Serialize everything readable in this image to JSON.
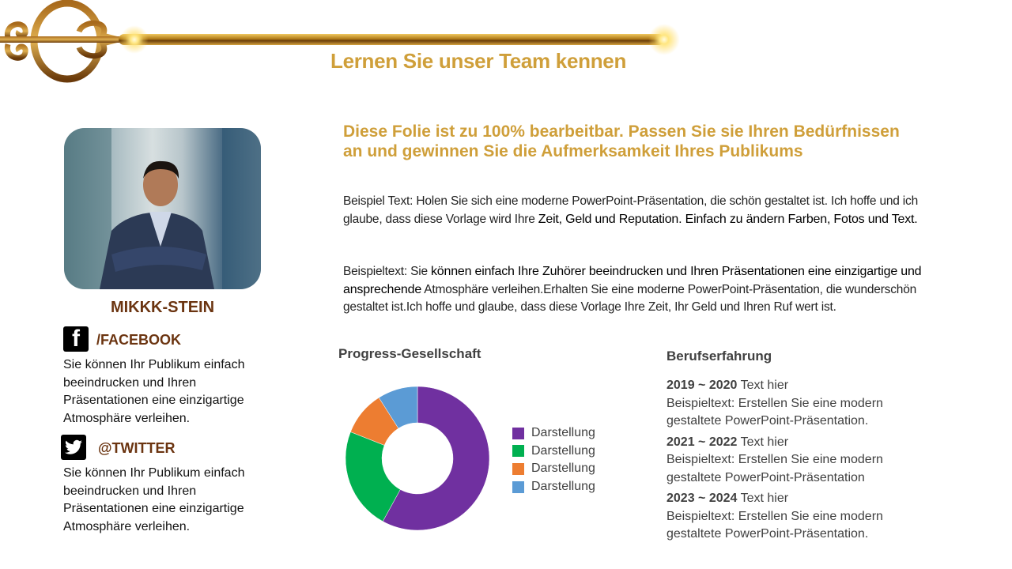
{
  "header": {
    "title": "Lernen Sie unser Team kennen"
  },
  "profile": {
    "name": "MIKKK-STEIN",
    "facebook": {
      "icon": "facebook-icon",
      "handle": "/FACEBOOK",
      "text": "Sie können Ihr Publikum einfach beeindrucken und Ihren Präsentationen eine einzigartige Atmosphäre verleihen."
    },
    "twitter": {
      "icon": "twitter-icon",
      "handle": "@TWITTER",
      "text": "Sie können Ihr Publikum einfach beeindrucken und Ihren Präsentationen eine einzigartige Atmosphäre verleihen."
    }
  },
  "main": {
    "headline": "Diese Folie ist zu 100% bearbeitbar. Passen Sie sie Ihren Bedürfnissen an und gewinnen Sie die Aufmerksamkeit Ihres Publikums",
    "para1_a": "Beispiel Text: Holen Sie sich eine moderne PowerPoint-Präsentation, die schön gestaltet ist. Ich hoffe und ich glaube, dass diese Vorlage wird Ihre ",
    "para1_b": "Zeit, Geld und Reputation. Einfach zu ändern Farben, Fotos und Text.",
    "para2_a": "Beispieltext: Sie ",
    "para2_b": "können einfach Ihre Zuhörer beeindrucken und Ihren Präsentationen eine einzigartige und ansprechende",
    "para2_c": "  Atmosphäre verleihen.Erhalten Sie eine moderne PowerPoint-Präsentation, die wunderschön gestaltet ist.Ich hoffe und glaube, dass diese Vorlage Ihre Zeit, Ihr Geld und Ihren Ruf wert ist."
  },
  "chart_data": {
    "type": "pie",
    "title": "Progress-Gesellschaft",
    "donut": true,
    "categories": [
      "Darstellung",
      "Darstellung",
      "Darstellung",
      "Darstellung"
    ],
    "values": [
      58,
      23,
      10,
      9
    ],
    "colors": [
      "#7030a0",
      "#00b050",
      "#ed7d31",
      "#5b9bd5"
    ],
    "legend": "right"
  },
  "experience": {
    "title": "Berufserfahrung",
    "entries": [
      {
        "years": "2019 ~ 2020",
        "label": " Text hier",
        "text": "Beispieltext: Erstellen Sie eine modern gestaltete PowerPoint-Präsentation."
      },
      {
        "years": "2021 ~ 2022",
        "label": " Text hier",
        "text": "Beispieltext: Erstellen Sie eine modern gestaltete PowerPoint-Präsentation"
      },
      {
        "years": "2023 ~ 2024",
        "label": " Text hier",
        "text": "Beispieltext: Erstellen Sie eine modern gestaltete PowerPoint-Präsentation."
      }
    ]
  }
}
